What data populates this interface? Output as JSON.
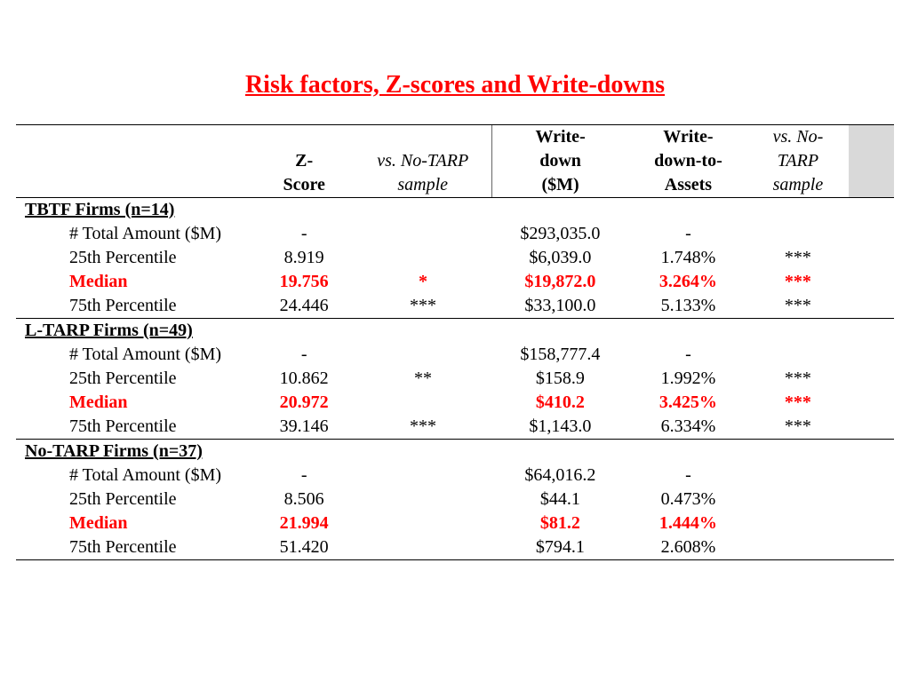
{
  "title": "Risk factors, Z-scores and Write-downs",
  "title_color": "#ff0000",
  "accent_color": "#ff0000",
  "gray_fill": "#d9d9d9",
  "background_color": "#ffffff",
  "font_family": "Times New Roman",
  "title_fontsize": 28,
  "body_fontsize": 20,
  "columns": {
    "label": "",
    "zscore": "Z-Score",
    "sig1": "vs. No-TARP sample",
    "writedown": "Write-down ($M)",
    "writedown_assets": "Write-down-to-Assets",
    "sig2": "vs. No-TARP sample"
  },
  "column_header_lines": {
    "zscore": [
      "Z-",
      "Score"
    ],
    "sig1": [
      "vs. No-TARP",
      "sample"
    ],
    "writedown": [
      "Write-",
      "down",
      "($M)"
    ],
    "writedown_assets": [
      "Write-",
      "down-to-",
      "Assets"
    ],
    "sig2": [
      "vs. No-",
      "TARP",
      "sample"
    ]
  },
  "row_labels": {
    "total": "# Total Amount ($M)",
    "p25": "25th Percentile",
    "median": "Median",
    "p75": "75th Percentile"
  },
  "groups": [
    {
      "header": "TBTF Firms (n=14)",
      "rows": {
        "total": {
          "z": "-",
          "sig1": "",
          "wd": "$293,035.0",
          "wda": "-",
          "sig2": ""
        },
        "p25": {
          "z": "8.919",
          "sig1": "",
          "wd": "$6,039.0",
          "wda": "1.748%",
          "sig2": "***"
        },
        "median": {
          "z": "19.756",
          "sig1": "*",
          "wd": "$19,872.0",
          "wda": "3.264%",
          "sig2": "***",
          "highlight": true
        },
        "p75": {
          "z": "24.446",
          "sig1": "***",
          "wd": "$33,100.0",
          "wda": "5.133%",
          "sig2": "***"
        }
      }
    },
    {
      "header": "L-TARP Firms (n=49)",
      "rows": {
        "total": {
          "z": "-",
          "sig1": "",
          "wd": "$158,777.4",
          "wda": "-",
          "sig2": ""
        },
        "p25": {
          "z": "10.862",
          "sig1": "**",
          "wd": "$158.9",
          "wda": "1.992%",
          "sig2": "***"
        },
        "median": {
          "z": "20.972",
          "sig1": "",
          "wd": "$410.2",
          "wda": "3.425%",
          "sig2": "***",
          "highlight": true
        },
        "p75": {
          "z": "39.146",
          "sig1": "***",
          "wd": "$1,143.0",
          "wda": "6.334%",
          "sig2": "***"
        }
      }
    },
    {
      "header": "No-TARP Firms (n=37)",
      "rows": {
        "total": {
          "z": "-",
          "sig1": "",
          "wd": "$64,016.2",
          "wda": "-",
          "sig2": ""
        },
        "p25": {
          "z": "8.506",
          "sig1": "",
          "wd": "$44.1",
          "wda": "0.473%",
          "sig2": ""
        },
        "median": {
          "z": "21.994",
          "sig1": "",
          "wd": "$81.2",
          "wda": "1.444%",
          "sig2": "",
          "highlight": true
        },
        "p75": {
          "z": "51.420",
          "sig1": "",
          "wd": "$794.1",
          "wda": "2.608%",
          "sig2": ""
        }
      }
    }
  ]
}
